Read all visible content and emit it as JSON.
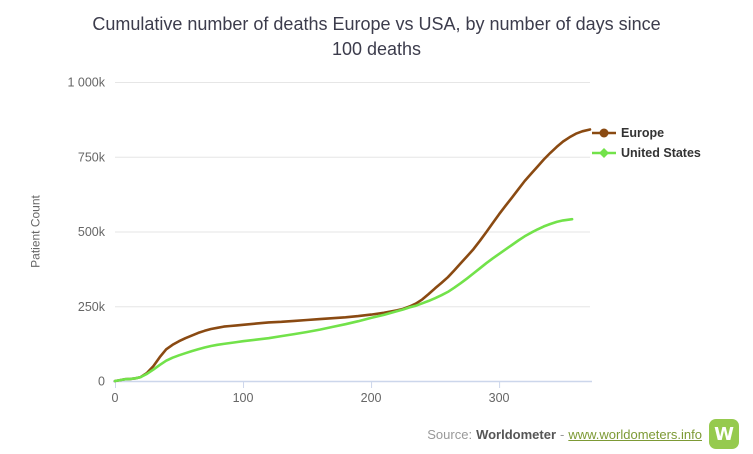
{
  "title": "Cumulative number of deaths Europe vs USA, by number of days since 100 deaths",
  "title_lines": [
    "Cumulative number of deaths Europe vs USA, by number of days since",
    "100 deaths"
  ],
  "colors": {
    "europe_line": "#8a4a12",
    "united_states_line": "#72e24a",
    "gridline": "#e6e6e6",
    "axis_line": "#ccd6eb",
    "tick_label": "#666666",
    "title_text": "#3c3c4c",
    "legend_text": "#333333",
    "source_text": "#999999",
    "source_name_text": "#555555",
    "link_green": "#7d9a35",
    "logo_green": "#96ca4e"
  },
  "chart_data": {
    "type": "line",
    "title": "Cumulative number of deaths Europe vs USA, by number of days since 100 deaths",
    "xlabel": "",
    "ylabel": "Patient Count",
    "xlim": [
      0,
      371
    ],
    "ylim": [
      0,
      1000
    ],
    "values_unit": "thousands of deaths",
    "grid": "horizontal-only",
    "legend_position": "right",
    "xticks": [
      {
        "value": 0,
        "label": "0"
      },
      {
        "value": 100,
        "label": "100"
      },
      {
        "value": 200,
        "label": "200"
      },
      {
        "value": 300,
        "label": "300"
      }
    ],
    "yticks": [
      {
        "value": 0,
        "label": "0"
      },
      {
        "value": 250,
        "label": "250k"
      },
      {
        "value": 500,
        "label": "500k"
      },
      {
        "value": 750,
        "label": "750k"
      },
      {
        "value": 1000,
        "label": "1 000k"
      }
    ],
    "series": [
      {
        "name": "Europe",
        "color": "#8a4a12",
        "marker": "circle",
        "points": [
          [
            0,
            0
          ],
          [
            4,
            3
          ],
          [
            8,
            6
          ],
          [
            12,
            7
          ],
          [
            16,
            9
          ],
          [
            20,
            13
          ],
          [
            25,
            27
          ],
          [
            30,
            50
          ],
          [
            35,
            80
          ],
          [
            40,
            106
          ],
          [
            45,
            121
          ],
          [
            50,
            133
          ],
          [
            55,
            143
          ],
          [
            60,
            152
          ],
          [
            65,
            161
          ],
          [
            70,
            168
          ],
          [
            75,
            174
          ],
          [
            80,
            178
          ],
          [
            85,
            182
          ],
          [
            90,
            184
          ],
          [
            95,
            186
          ],
          [
            100,
            188
          ],
          [
            110,
            192
          ],
          [
            120,
            196
          ],
          [
            130,
            198
          ],
          [
            140,
            201
          ],
          [
            150,
            204
          ],
          [
            160,
            207
          ],
          [
            170,
            210
          ],
          [
            180,
            213
          ],
          [
            190,
            217
          ],
          [
            200,
            222
          ],
          [
            210,
            228
          ],
          [
            220,
            236
          ],
          [
            225,
            241
          ],
          [
            230,
            249
          ],
          [
            235,
            259
          ],
          [
            240,
            273
          ],
          [
            245,
            291
          ],
          [
            250,
            310
          ],
          [
            255,
            328
          ],
          [
            260,
            347
          ],
          [
            265,
            370
          ],
          [
            270,
            394
          ],
          [
            275,
            417
          ],
          [
            280,
            441
          ],
          [
            285,
            469
          ],
          [
            290,
            498
          ],
          [
            295,
            528
          ],
          [
            300,
            558
          ],
          [
            305,
            586
          ],
          [
            310,
            613
          ],
          [
            315,
            641
          ],
          [
            320,
            669
          ],
          [
            325,
            693
          ],
          [
            330,
            717
          ],
          [
            335,
            741
          ],
          [
            340,
            763
          ],
          [
            345,
            783
          ],
          [
            350,
            801
          ],
          [
            355,
            815
          ],
          [
            360,
            827
          ],
          [
            365,
            835
          ],
          [
            371,
            841
          ]
        ]
      },
      {
        "name": "United States",
        "color": "#72e24a",
        "marker": "diamond",
        "points": [
          [
            0,
            0
          ],
          [
            4,
            3
          ],
          [
            8,
            6
          ],
          [
            12,
            7
          ],
          [
            16,
            9
          ],
          [
            20,
            13
          ],
          [
            25,
            24
          ],
          [
            30,
            38
          ],
          [
            35,
            54
          ],
          [
            40,
            68
          ],
          [
            45,
            78
          ],
          [
            50,
            86
          ],
          [
            55,
            93
          ],
          [
            60,
            100
          ],
          [
            65,
            106
          ],
          [
            70,
            112
          ],
          [
            75,
            117
          ],
          [
            80,
            121
          ],
          [
            85,
            124
          ],
          [
            90,
            127
          ],
          [
            95,
            130
          ],
          [
            100,
            133
          ],
          [
            110,
            138
          ],
          [
            120,
            143
          ],
          [
            130,
            150
          ],
          [
            140,
            157
          ],
          [
            150,
            164
          ],
          [
            160,
            172
          ],
          [
            170,
            181
          ],
          [
            180,
            190
          ],
          [
            190,
            200
          ],
          [
            200,
            211
          ],
          [
            210,
            221
          ],
          [
            220,
            233
          ],
          [
            225,
            239
          ],
          [
            230,
            246
          ],
          [
            235,
            252
          ],
          [
            240,
            260
          ],
          [
            245,
            268
          ],
          [
            250,
            277
          ],
          [
            255,
            287
          ],
          [
            260,
            298
          ],
          [
            265,
            312
          ],
          [
            270,
            327
          ],
          [
            275,
            343
          ],
          [
            280,
            360
          ],
          [
            285,
            377
          ],
          [
            290,
            394
          ],
          [
            295,
            410
          ],
          [
            300,
            425
          ],
          [
            305,
            440
          ],
          [
            310,
            455
          ],
          [
            315,
            470
          ],
          [
            320,
            484
          ],
          [
            325,
            496
          ],
          [
            330,
            507
          ],
          [
            335,
            517
          ],
          [
            340,
            525
          ],
          [
            345,
            532
          ],
          [
            350,
            537
          ],
          [
            357,
            541
          ]
        ]
      }
    ]
  },
  "legend": {
    "items": [
      {
        "label": "Europe"
      },
      {
        "label": "United States"
      }
    ]
  },
  "footer": {
    "source_prefix": "Source:",
    "source_name": "Worldometer",
    "separator": "-",
    "link": "www.worldometers.info",
    "logo_letter": "W"
  }
}
